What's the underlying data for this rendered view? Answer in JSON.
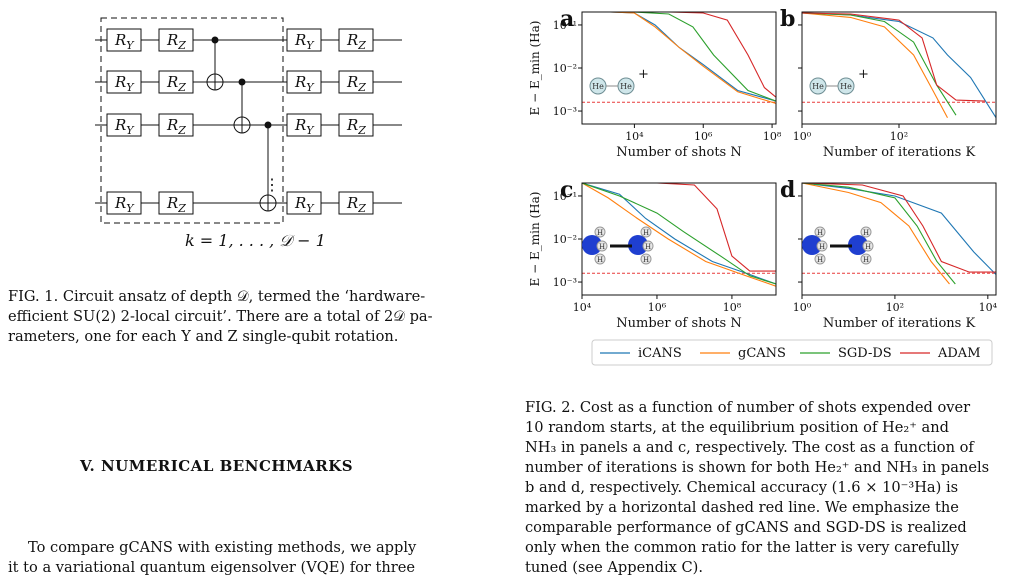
{
  "fig1": {
    "gate_ry": "R",
    "gate_ry_sub": "Y",
    "gate_rz": "R",
    "gate_rz_sub": "Z",
    "dots": "⋮",
    "depth_label": "k = 1, . . . , 𝒟 − 1",
    "caption_lines": [
      "FIG. 1.  Circuit ansatz of depth 𝒟, termed the ‘hardware-",
      "efficient SU(2) 2-local circuit’.  There are a total of 2𝒟 pa-",
      "rameters, one for each Y and Z single-qubit rotation."
    ]
  },
  "section": {
    "heading": "V.   NUMERICAL BENCHMARKS",
    "body_lines": [
      "To compare gCANS with existing methods, we apply",
      "it to a variational quantum eigensolver (VQE) for three"
    ]
  },
  "fig2": {
    "caption_lines": [
      "FIG. 2. Cost as a function of number of shots expended over",
      "10 random starts, at the equilibrium position of He₂⁺ and",
      "NH₃ in panels a and c, respectively. The cost as a function of",
      "number of iterations is shown for both He₂⁺ and NH₃ in panels",
      "b and d, respectively. Chemical accuracy (1.6 × 10⁻³Ha) is",
      "marked by a horizontal dashed red line. We emphasize the",
      "comparable performance of gCANS and SGD-DS is realized",
      "only when the common ratio for the latter is very carefully",
      "tuned (see Appendix C)."
    ],
    "appendix_link": "C",
    "colors": {
      "iCANS": "#1f77b4",
      "gCANS": "#ff7f0e",
      "SGD-DS": "#2ca02c",
      "ADAM": "#d62728",
      "chem": "#e83a3a"
    },
    "ylabel": "E − E_min (Ha)",
    "molecule_he": "He",
    "molecule_plus": "+",
    "atom_h": "H",
    "legend": [
      "iCANS",
      "gCANS",
      "SGD-DS",
      "ADAM"
    ]
  },
  "chart_data": [
    {
      "panel": "a",
      "type": "line",
      "xlabel": "Number of shots N",
      "ylabel": "E − E_min (Ha)",
      "xscale": "log",
      "yscale": "log",
      "xlim": [
        300,
        130000000
      ],
      "ylim": [
        0.0005,
        0.2
      ],
      "xticks": [
        "10⁴",
        "10⁶",
        "10⁸"
      ],
      "yticks": [
        "10⁻¹",
        "10⁻²",
        "10⁻³"
      ],
      "chemical_accuracy": 0.0016,
      "series": [
        {
          "name": "iCANS",
          "x": [
            300,
            2000,
            10000,
            40000,
            200000,
            1000000,
            10000000,
            130000000
          ],
          "y": [
            0.2,
            0.2,
            0.19,
            0.1,
            0.03,
            0.012,
            0.003,
            0.0017
          ]
        },
        {
          "name": "gCANS",
          "x": [
            300,
            2000,
            10000,
            40000,
            200000,
            1000000,
            10000000,
            130000000
          ],
          "y": [
            0.2,
            0.2,
            0.19,
            0.09,
            0.03,
            0.011,
            0.0028,
            0.0015
          ]
        },
        {
          "name": "SGD-DS",
          "x": [
            300,
            2000,
            10000,
            100000,
            500000,
            2000000,
            20000000,
            130000000
          ],
          "y": [
            0.2,
            0.2,
            0.2,
            0.18,
            0.09,
            0.02,
            0.003,
            0.0017
          ]
        },
        {
          "name": "ADAM",
          "x": [
            300,
            10000,
            100000,
            1000000,
            5000000,
            20000000,
            60000000,
            130000000
          ],
          "y": [
            0.2,
            0.2,
            0.2,
            0.19,
            0.13,
            0.02,
            0.0035,
            0.0021
          ]
        }
      ]
    },
    {
      "panel": "b",
      "type": "line",
      "xlabel": "Number of iterations K",
      "xscale": "log",
      "yscale": "log",
      "xlim": [
        1,
        10000
      ],
      "ylim": [
        0.0005,
        0.2
      ],
      "xticks": [
        "10⁰",
        "10²"
      ],
      "chemical_accuracy": 0.0016,
      "series": [
        {
          "name": "iCANS",
          "x": [
            1,
            10,
            100,
            500,
            1000,
            3000,
            10000
          ],
          "y": [
            0.19,
            0.17,
            0.12,
            0.05,
            0.02,
            0.006,
            0.0007
          ]
        },
        {
          "name": "gCANS",
          "x": [
            1,
            10,
            50,
            200,
            500,
            1000
          ],
          "y": [
            0.19,
            0.15,
            0.09,
            0.02,
            0.003,
            0.0007
          ]
        },
        {
          "name": "SGD-DS",
          "x": [
            1,
            10,
            50,
            200,
            600,
            1500
          ],
          "y": [
            0.19,
            0.17,
            0.12,
            0.04,
            0.004,
            0.0008
          ]
        },
        {
          "name": "ADAM",
          "x": [
            1,
            10,
            100,
            300,
            600,
            1500,
            6000
          ],
          "y": [
            0.19,
            0.18,
            0.13,
            0.05,
            0.004,
            0.0018,
            0.0017
          ]
        }
      ]
    },
    {
      "panel": "c",
      "type": "line",
      "xlabel": "Number of shots N",
      "ylabel": "E − E_min (Ha)",
      "xscale": "log",
      "yscale": "log",
      "xlim": [
        10000,
        1500000000
      ],
      "ylim": [
        0.0005,
        0.2
      ],
      "xticks": [
        "10⁴",
        "10⁶",
        "10⁸"
      ],
      "yticks": [
        "10⁻¹",
        "10⁻²",
        "10⁻³"
      ],
      "chemical_accuracy": 0.0016,
      "series": [
        {
          "name": "iCANS",
          "x": [
            10000,
            100000,
            500000,
            3000000,
            30000000,
            300000000,
            1500000000
          ],
          "y": [
            0.2,
            0.11,
            0.03,
            0.01,
            0.003,
            0.0015,
            0.0009
          ]
        },
        {
          "name": "gCANS",
          "x": [
            10000,
            50000,
            300000,
            2000000,
            20000000,
            300000000,
            1500000000
          ],
          "y": [
            0.2,
            0.09,
            0.03,
            0.01,
            0.003,
            0.0013,
            0.0008
          ]
        },
        {
          "name": "SGD-DS",
          "x": [
            10000,
            100000,
            1000000,
            5000000,
            50000000,
            300000000,
            1500000000
          ],
          "y": [
            0.2,
            0.1,
            0.04,
            0.015,
            0.004,
            0.0014,
            0.0009
          ]
        },
        {
          "name": "ADAM",
          "x": [
            10000,
            1000000,
            10000000,
            40000000,
            100000000,
            300000000,
            1500000000
          ],
          "y": [
            0.2,
            0.2,
            0.18,
            0.05,
            0.004,
            0.0018,
            0.0018
          ]
        }
      ]
    },
    {
      "panel": "d",
      "type": "line",
      "xlabel": "Number of iterations K",
      "xscale": "log",
      "yscale": "log",
      "xlim": [
        1,
        15000
      ],
      "ylim": [
        0.0005,
        0.2
      ],
      "xticks": [
        "10⁰",
        "10²",
        "10⁴"
      ],
      "chemical_accuracy": 0.0016,
      "series": [
        {
          "name": "iCANS",
          "x": [
            1,
            10,
            100,
            1000,
            5000,
            15000
          ],
          "y": [
            0.2,
            0.15,
            0.1,
            0.04,
            0.005,
            0.0015
          ]
        },
        {
          "name": "gCANS",
          "x": [
            1,
            10,
            50,
            200,
            600,
            1500
          ],
          "y": [
            0.2,
            0.12,
            0.07,
            0.02,
            0.003,
            0.0009
          ]
        },
        {
          "name": "SGD-DS",
          "x": [
            1,
            10,
            100,
            300,
            800,
            2000
          ],
          "y": [
            0.2,
            0.16,
            0.09,
            0.02,
            0.003,
            0.0009
          ]
        },
        {
          "name": "ADAM",
          "x": [
            1,
            20,
            150,
            400,
            1000,
            4000,
            15000
          ],
          "y": [
            0.2,
            0.18,
            0.1,
            0.02,
            0.003,
            0.0017,
            0.0017
          ]
        }
      ]
    }
  ]
}
